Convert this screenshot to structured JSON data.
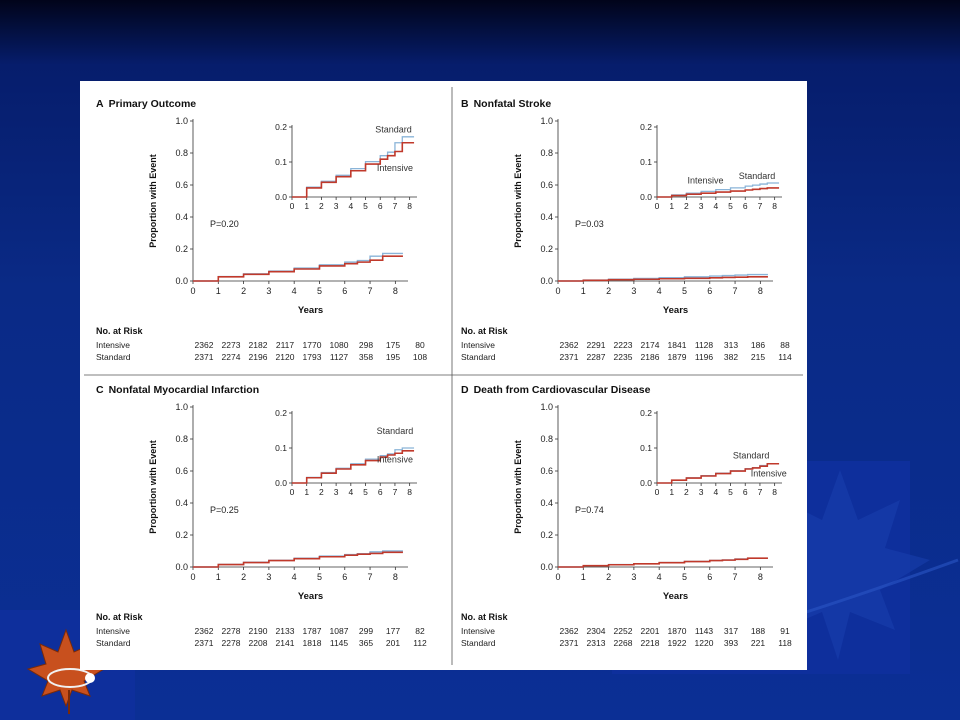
{
  "theme": {
    "intensive_color": "#c0392b",
    "standard_color": "#8ab4d8",
    "slide_background": "#0b2f95",
    "accent_block": "#0e2f9c"
  },
  "risk_heading": "No. at Risk",
  "x_axis_label": "Years",
  "y_axis_label": "Proportion with Event",
  "chart_data": [
    {
      "type": "line",
      "panel_letter": "A",
      "title": "Primary Outcome",
      "p_value": "P=0.20",
      "xlabel": "Years",
      "ylabel": "Proportion with Event",
      "xlim": [
        0,
        8.5
      ],
      "ylim": [
        0,
        1.0
      ],
      "x_ticks": [
        "0",
        "1",
        "2",
        "3",
        "4",
        "5",
        "6",
        "7",
        "8"
      ],
      "y_ticks": [
        "0.0",
        "0.2",
        "0.4",
        "0.6",
        "0.8",
        "1.0"
      ],
      "inset": {
        "ylim": [
          0,
          0.2
        ],
        "y_ticks": [
          "0.0",
          "0.1",
          "0.2"
        ],
        "x_ticks": [
          "0",
          "1",
          "2",
          "3",
          "4",
          "5",
          "6",
          "7",
          "8"
        ],
        "labels": [
          {
            "text": "Standard",
            "x": 6.9,
            "y": 0.185
          },
          {
            "text": "Intensive",
            "x": 7.0,
            "y": 0.075
          }
        ]
      },
      "series": [
        {
          "name": "Standard",
          "x": [
            0,
            1,
            2,
            3,
            4,
            5,
            6,
            6.5,
            7,
            7.5,
            8,
            8.3
          ],
          "y": [
            0,
            0.028,
            0.045,
            0.062,
            0.081,
            0.101,
            0.118,
            0.128,
            0.155,
            0.172,
            0.172,
            0.172
          ]
        },
        {
          "name": "Intensive",
          "x": [
            0,
            1,
            2,
            3,
            4,
            5,
            6,
            6.5,
            7,
            7.5,
            8,
            8.3
          ],
          "y": [
            0,
            0.026,
            0.042,
            0.058,
            0.075,
            0.094,
            0.108,
            0.118,
            0.13,
            0.155,
            0.155,
            0.155
          ]
        }
      ],
      "risk_table": {
        "heading": "No. at Risk",
        "rows": [
          {
            "label": "Intensive",
            "values": [
              "2362",
              "2273",
              "2182",
              "2117",
              "1770",
              "1080",
              "298",
              "175",
              "80"
            ]
          },
          {
            "label": "Standard",
            "values": [
              "2371",
              "2274",
              "2196",
              "2120",
              "1793",
              "1127",
              "358",
              "195",
              "108"
            ]
          }
        ]
      }
    },
    {
      "type": "line",
      "panel_letter": "B",
      "title": "Nonfatal Stroke",
      "p_value": "P=0.03",
      "xlabel": "Years",
      "ylabel": "Proportion with Event",
      "xlim": [
        0,
        8.5
      ],
      "ylim": [
        0,
        1.0
      ],
      "x_ticks": [
        "0",
        "1",
        "2",
        "3",
        "4",
        "5",
        "6",
        "7",
        "8"
      ],
      "y_ticks": [
        "0.0",
        "0.2",
        "0.4",
        "0.6",
        "0.8",
        "1.0"
      ],
      "inset": {
        "ylim": [
          0,
          0.2
        ],
        "y_ticks": [
          "0.0",
          "0.1",
          "0.2"
        ],
        "x_ticks": [
          "0",
          "1",
          "2",
          "3",
          "4",
          "5",
          "6",
          "7",
          "8"
        ],
        "labels": [
          {
            "text": "Intensive",
            "x": 3.3,
            "y": 0.038
          },
          {
            "text": "Standard",
            "x": 6.8,
            "y": 0.052
          }
        ]
      },
      "series": [
        {
          "name": "Standard",
          "x": [
            0,
            1,
            2,
            3,
            4,
            5,
            6,
            6.5,
            7,
            7.5,
            8,
            8.3
          ],
          "y": [
            0,
            0.006,
            0.011,
            0.016,
            0.021,
            0.026,
            0.031,
            0.034,
            0.037,
            0.04,
            0.04,
            0.04
          ]
        },
        {
          "name": "Intensive",
          "x": [
            0,
            1,
            2,
            3,
            4,
            5,
            6,
            6.5,
            7,
            7.5,
            8,
            8.3
          ],
          "y": [
            0,
            0.004,
            0.008,
            0.011,
            0.014,
            0.017,
            0.02,
            0.022,
            0.024,
            0.026,
            0.026,
            0.026
          ]
        }
      ],
      "risk_table": {
        "heading": "No. at Risk",
        "rows": [
          {
            "label": "Intensive",
            "values": [
              "2362",
              "2291",
              "2223",
              "2174",
              "1841",
              "1128",
              "313",
              "186",
              "88"
            ]
          },
          {
            "label": "Standard",
            "values": [
              "2371",
              "2287",
              "2235",
              "2186",
              "1879",
              "1196",
              "382",
              "215",
              "114"
            ]
          }
        ]
      }
    },
    {
      "type": "line",
      "panel_letter": "C",
      "title": "Nonfatal Myocardial Infarction",
      "p_value": "P=0.25",
      "xlabel": "Years",
      "ylabel": "Proportion with Event",
      "xlim": [
        0,
        8.5
      ],
      "ylim": [
        0,
        1.0
      ],
      "x_ticks": [
        "0",
        "1",
        "2",
        "3",
        "4",
        "5",
        "6",
        "7",
        "8"
      ],
      "y_ticks": [
        "0.0",
        "0.2",
        "0.4",
        "0.6",
        "0.8",
        "1.0"
      ],
      "inset": {
        "ylim": [
          0,
          0.2
        ],
        "y_ticks": [
          "0.0",
          "0.1",
          "0.2"
        ],
        "x_ticks": [
          "0",
          "1",
          "2",
          "3",
          "4",
          "5",
          "6",
          "7",
          "8"
        ],
        "labels": [
          {
            "text": "Standard",
            "x": 7.0,
            "y": 0.14
          },
          {
            "text": "Intensive",
            "x": 7.0,
            "y": 0.058
          }
        ]
      },
      "series": [
        {
          "name": "Standard",
          "x": [
            0,
            1,
            2,
            3,
            4,
            5,
            6,
            6.5,
            7,
            7.5,
            8,
            8.3
          ],
          "y": [
            0,
            0.016,
            0.03,
            0.042,
            0.055,
            0.068,
            0.078,
            0.083,
            0.095,
            0.1,
            0.1,
            0.1
          ]
        },
        {
          "name": "Intensive",
          "x": [
            0,
            1,
            2,
            3,
            4,
            5,
            6,
            6.5,
            7,
            7.5,
            8,
            8.3
          ],
          "y": [
            0,
            0.015,
            0.028,
            0.04,
            0.052,
            0.064,
            0.074,
            0.08,
            0.085,
            0.092,
            0.092,
            0.092
          ]
        }
      ],
      "risk_table": {
        "heading": "No. at Risk",
        "rows": [
          {
            "label": "Intensive",
            "values": [
              "2362",
              "2278",
              "2190",
              "2133",
              "1787",
              "1087",
              "299",
              "177",
              "82"
            ]
          },
          {
            "label": "Standard",
            "values": [
              "2371",
              "2278",
              "2208",
              "2141",
              "1818",
              "1145",
              "365",
              "201",
              "112"
            ]
          }
        ]
      }
    },
    {
      "type": "line",
      "panel_letter": "D",
      "title": "Death from Cardiovascular Disease",
      "p_value": "P=0.74",
      "xlabel": "Years",
      "ylabel": "Proportion with Event",
      "xlim": [
        0,
        8.5
      ],
      "ylim": [
        0,
        1.0
      ],
      "x_ticks": [
        "0",
        "1",
        "2",
        "3",
        "4",
        "5",
        "6",
        "7",
        "8"
      ],
      "y_ticks": [
        "0.0",
        "0.2",
        "0.4",
        "0.6",
        "0.8",
        "1.0"
      ],
      "inset": {
        "ylim": [
          0,
          0.2
        ],
        "y_ticks": [
          "0.0",
          "0.1",
          "0.2"
        ],
        "x_ticks": [
          "0",
          "1",
          "2",
          "3",
          "4",
          "5",
          "6",
          "7",
          "8"
        ],
        "labels": [
          {
            "text": "Standard",
            "x": 6.4,
            "y": 0.07
          },
          {
            "text": "Intensive",
            "x": 7.6,
            "y": 0.018
          }
        ]
      },
      "series": [
        {
          "name": "Standard",
          "x": [
            0,
            1,
            2,
            3,
            4,
            5,
            6,
            6.5,
            7,
            7.5,
            8,
            8.3
          ],
          "y": [
            0,
            0.008,
            0.015,
            0.021,
            0.028,
            0.035,
            0.041,
            0.044,
            0.05,
            0.055,
            0.055,
            0.055
          ]
        },
        {
          "name": "Intensive",
          "x": [
            0,
            1,
            2,
            3,
            4,
            5,
            6,
            6.5,
            7,
            7.5,
            8,
            8.3
          ],
          "y": [
            0,
            0.008,
            0.014,
            0.02,
            0.027,
            0.034,
            0.04,
            0.043,
            0.048,
            0.055,
            0.055,
            0.055
          ]
        }
      ],
      "risk_table": {
        "heading": "No. at Risk",
        "rows": [
          {
            "label": "Intensive",
            "values": [
              "2362",
              "2304",
              "2252",
              "2201",
              "1870",
              "1143",
              "317",
              "188",
              "91"
            ]
          },
          {
            "label": "Standard",
            "values": [
              "2371",
              "2313",
              "2268",
              "2218",
              "1922",
              "1220",
              "393",
              "221",
              "118"
            ]
          }
        ]
      }
    }
  ]
}
